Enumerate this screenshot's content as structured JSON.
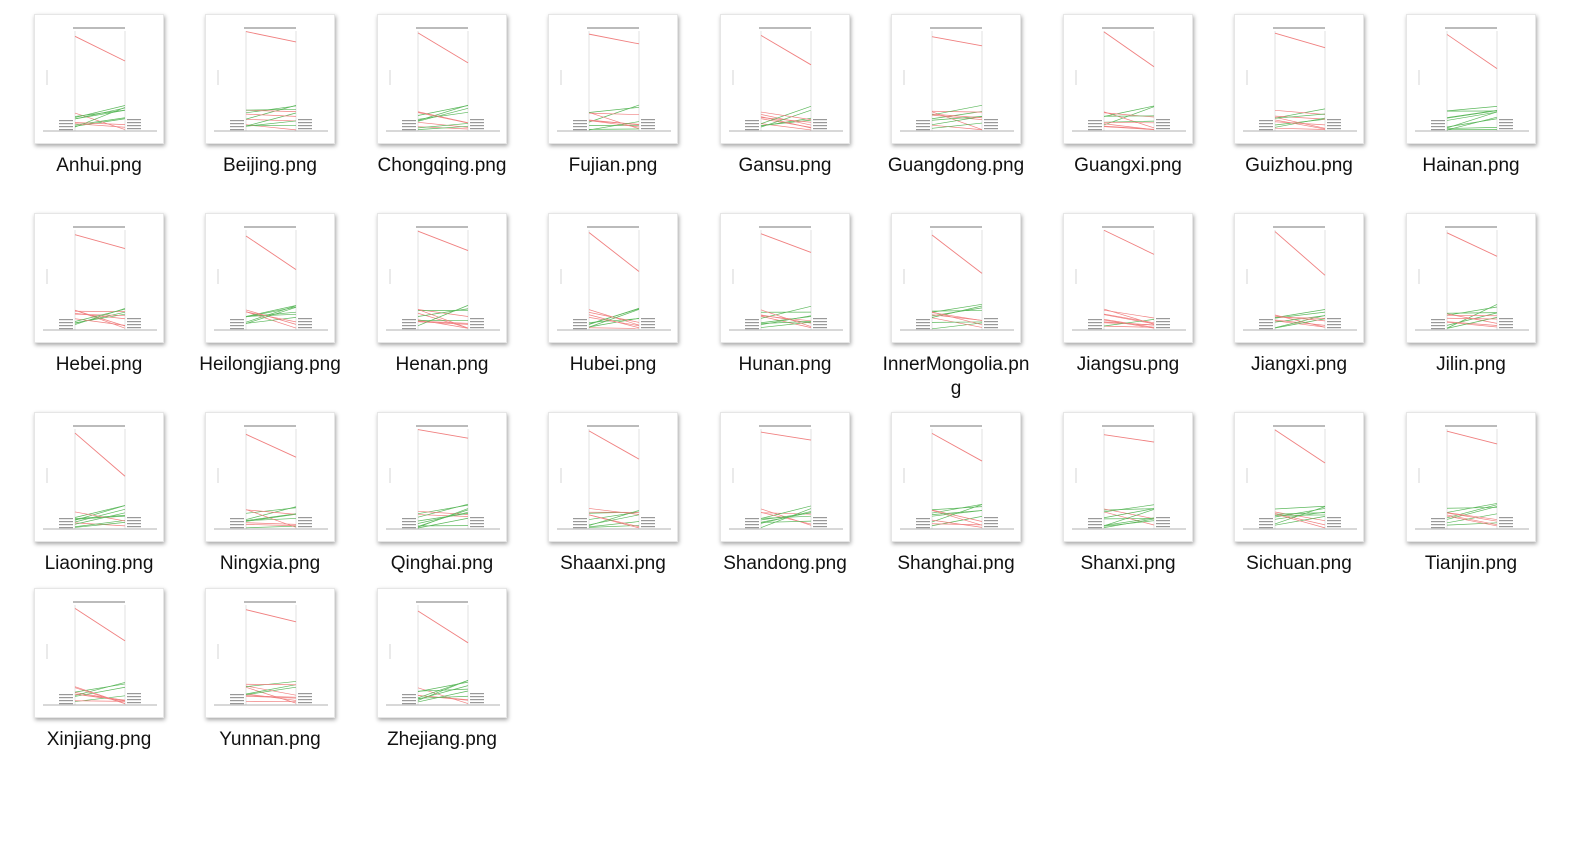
{
  "folder": {
    "files": [
      {
        "name": "Anhui.png",
        "preview": "slope-chart-icon"
      },
      {
        "name": "Beijing.png",
        "preview": "slope-chart-icon"
      },
      {
        "name": "Chongqing.png",
        "preview": "slope-chart-icon"
      },
      {
        "name": "Fujian.png",
        "preview": "slope-chart-icon"
      },
      {
        "name": "Gansu.png",
        "preview": "slope-chart-icon"
      },
      {
        "name": "Guangdong.png",
        "preview": "slope-chart-icon"
      },
      {
        "name": "Guangxi.png",
        "preview": "slope-chart-icon"
      },
      {
        "name": "Guizhou.png",
        "preview": "slope-chart-icon"
      },
      {
        "name": "Hainan.png",
        "preview": "slope-chart-icon"
      },
      {
        "name": "Hebei.png",
        "preview": "slope-chart-icon"
      },
      {
        "name": "Heilongjiang.png",
        "preview": "slope-chart-icon"
      },
      {
        "name": "Henan.png",
        "preview": "slope-chart-icon"
      },
      {
        "name": "Hubei.png",
        "preview": "slope-chart-icon"
      },
      {
        "name": "Hunan.png",
        "preview": "slope-chart-icon"
      },
      {
        "name": "InnerMongolia.png",
        "preview": "slope-chart-icon"
      },
      {
        "name": "Jiangsu.png",
        "preview": "slope-chart-icon"
      },
      {
        "name": "Jiangxi.png",
        "preview": "slope-chart-icon"
      },
      {
        "name": "Jilin.png",
        "preview": "slope-chart-icon"
      },
      {
        "name": "Liaoning.png",
        "preview": "slope-chart-icon"
      },
      {
        "name": "Ningxia.png",
        "preview": "slope-chart-icon"
      },
      {
        "name": "Qinghai.png",
        "preview": "slope-chart-icon"
      },
      {
        "name": "Shaanxi.png",
        "preview": "slope-chart-icon"
      },
      {
        "name": "Shandong.png",
        "preview": "slope-chart-icon"
      },
      {
        "name": "Shanghai.png",
        "preview": "slope-chart-icon"
      },
      {
        "name": "Shanxi.png",
        "preview": "slope-chart-icon"
      },
      {
        "name": "Sichuan.png",
        "preview": "slope-chart-icon"
      },
      {
        "name": "Tianjin.png",
        "preview": "slope-chart-icon"
      },
      {
        "name": "Xinjiang.png",
        "preview": "slope-chart-icon"
      },
      {
        "name": "Yunnan.png",
        "preview": "slope-chart-icon"
      },
      {
        "name": "Zhejiang.png",
        "preview": "slope-chart-icon"
      }
    ],
    "colors": {
      "decrease_line": "#f08080",
      "increase_line": "#5cb85c",
      "axis_line": "#cccccc",
      "label_text": "#555555"
    }
  }
}
